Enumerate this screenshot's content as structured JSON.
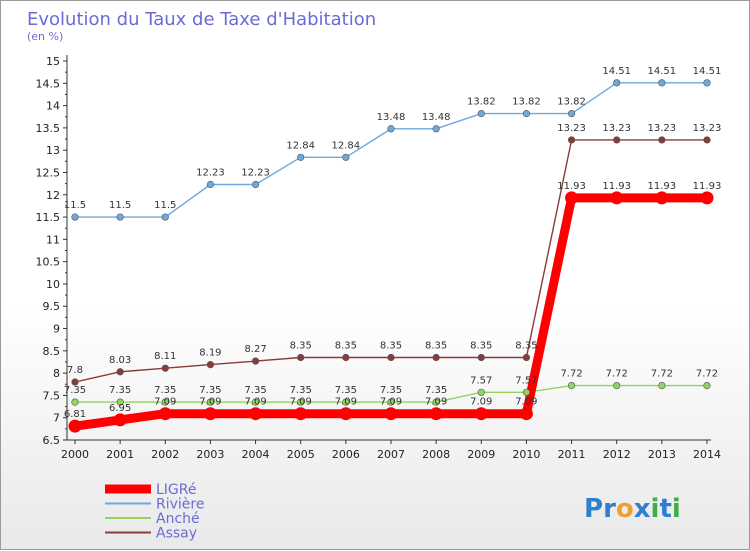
{
  "chart_data": {
    "type": "line",
    "title": "Evolution du Taux de Taxe d'Habitation",
    "ylabel": "(en %)",
    "xlabel": "",
    "x": [
      "2000",
      "2001",
      "2002",
      "2003",
      "2004",
      "2005",
      "2006",
      "2007",
      "2008",
      "2009",
      "2010",
      "2011",
      "2012",
      "2013",
      "2014"
    ],
    "ylim": [
      6.5,
      15
    ],
    "ystep": 0.5,
    "grid": false,
    "legend_position": "bottom-left",
    "series": [
      {
        "name": "LIGRé",
        "color": "#ff0000",
        "values": [
          6.81,
          6.95,
          7.09,
          7.09,
          7.09,
          7.09,
          7.09,
          7.09,
          7.09,
          7.09,
          7.09,
          11.93,
          11.93,
          11.93,
          11.93
        ],
        "labels": [
          "6.81",
          "6.95",
          "7.09",
          "7.09",
          "7.09",
          "7.09",
          "7.09",
          "7.09",
          "7.09",
          "7.09",
          "7.09",
          "11.93",
          "11.93",
          "11.93",
          "11.93"
        ]
      },
      {
        "name": "Rivière",
        "color": "#6fa8dc",
        "values": [
          11.5,
          11.5,
          11.5,
          12.23,
          12.23,
          12.84,
          12.84,
          13.48,
          13.48,
          13.82,
          13.82,
          13.82,
          14.51,
          14.51,
          14.51
        ],
        "labels": [
          "11.5",
          "11.5",
          "11.5",
          "12.23",
          "12.23",
          "12.84",
          "12.84",
          "13.48",
          "13.48",
          "13.82",
          "13.82",
          "13.82",
          "14.51",
          "14.51",
          "14.51"
        ]
      },
      {
        "name": "Anché",
        "color": "#8fd45f",
        "values": [
          7.35,
          7.35,
          7.35,
          7.35,
          7.35,
          7.35,
          7.35,
          7.35,
          7.35,
          7.57,
          7.57,
          7.72,
          7.72,
          7.72,
          7.72
        ],
        "labels": [
          "7.35",
          "7.35",
          "7.35",
          "7.35",
          "7.35",
          "7.35",
          "7.35",
          "7.35",
          "7.35",
          "7.57",
          "7.57",
          "7.72",
          "7.72",
          "7.72",
          "7.72"
        ]
      },
      {
        "name": "Assay",
        "color": "#8b3a3a",
        "values": [
          7.8,
          8.03,
          8.11,
          8.19,
          8.27,
          8.35,
          8.35,
          8.35,
          8.35,
          8.35,
          8.35,
          13.23,
          13.23,
          13.23,
          13.23
        ],
        "labels": [
          "7.8",
          "8.03",
          "8.11",
          "8.19",
          "8.27",
          "8.35",
          "8.35",
          "8.35",
          "8.35",
          "8.35",
          "8.35",
          "13.23",
          "13.23",
          "13.23",
          "13.23"
        ]
      }
    ]
  },
  "brand": {
    "letters": [
      "P",
      "r",
      "o",
      "x",
      "i",
      "t",
      "i"
    ],
    "colors": [
      "#2f7fd1",
      "#2f7fd1",
      "#f0a030",
      "#2f7fd1",
      "#3fae49",
      "#2f7fd1",
      "#3fae49"
    ]
  }
}
